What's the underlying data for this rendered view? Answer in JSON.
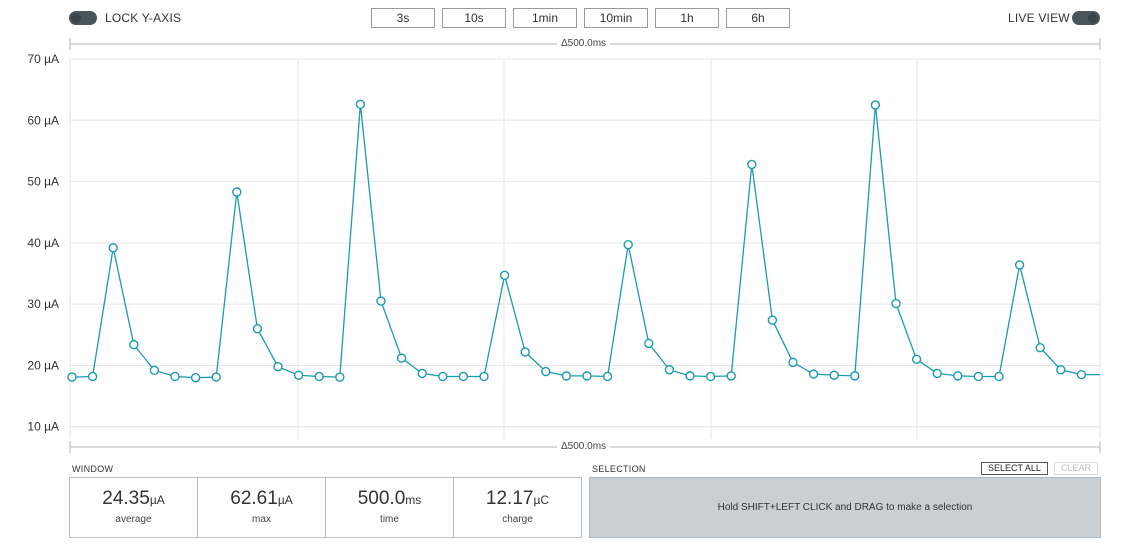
{
  "controls": {
    "lock_y_axis_label": "LOCK Y-AXIS",
    "live_view_label": "LIVE VIEW",
    "ranges": [
      "3s",
      "10s",
      "1min",
      "10min",
      "1h",
      "6h"
    ]
  },
  "chart": {
    "delta_top": "Δ500.0ms",
    "delta_bottom": "Δ500.0ms",
    "line_color": "#1a9bb0"
  },
  "chart_data": {
    "type": "line",
    "title": "",
    "xlabel": "",
    "ylabel": "",
    "y_tick_labels": [
      "10 µA",
      "20 µA",
      "30 µA",
      "40 µA",
      "50 µA",
      "60 µA",
      "70 µA"
    ],
    "ylim": [
      8,
      70
    ],
    "unit": "µA",
    "grid": true,
    "series": [
      {
        "values": [
          18.1,
          18.2,
          39.2,
          23.4,
          19.2,
          18.2,
          18.0,
          18.1,
          48.3,
          26.0,
          19.8,
          18.4,
          18.2,
          18.1,
          62.6,
          30.5,
          21.2,
          18.7,
          18.2,
          18.2,
          18.2,
          34.7,
          22.2,
          19.0,
          18.3,
          18.3,
          18.2,
          39.7,
          23.6,
          19.3,
          18.3,
          18.2,
          18.3,
          52.8,
          27.4,
          20.5,
          18.6,
          18.4,
          18.3,
          62.5,
          30.1,
          21.0,
          18.7,
          18.3,
          18.2,
          18.2,
          36.4,
          22.9,
          19.3,
          18.5,
          18.5
        ]
      }
    ]
  },
  "window": {
    "section_label": "WINDOW",
    "stats": [
      {
        "value": "24.35",
        "unit": "µA",
        "caption": "average"
      },
      {
        "value": "62.61",
        "unit": "µA",
        "caption": "max"
      },
      {
        "value": "500.0",
        "unit": "ms",
        "caption": "time"
      },
      {
        "value": "12.17",
        "unit": "µC",
        "caption": "charge"
      }
    ]
  },
  "selection": {
    "section_label": "SELECTION",
    "select_all_label": "SELECT ALL",
    "clear_label": "CLEAR",
    "hint": "Hold SHIFT+LEFT CLICK and DRAG to make a selection"
  }
}
